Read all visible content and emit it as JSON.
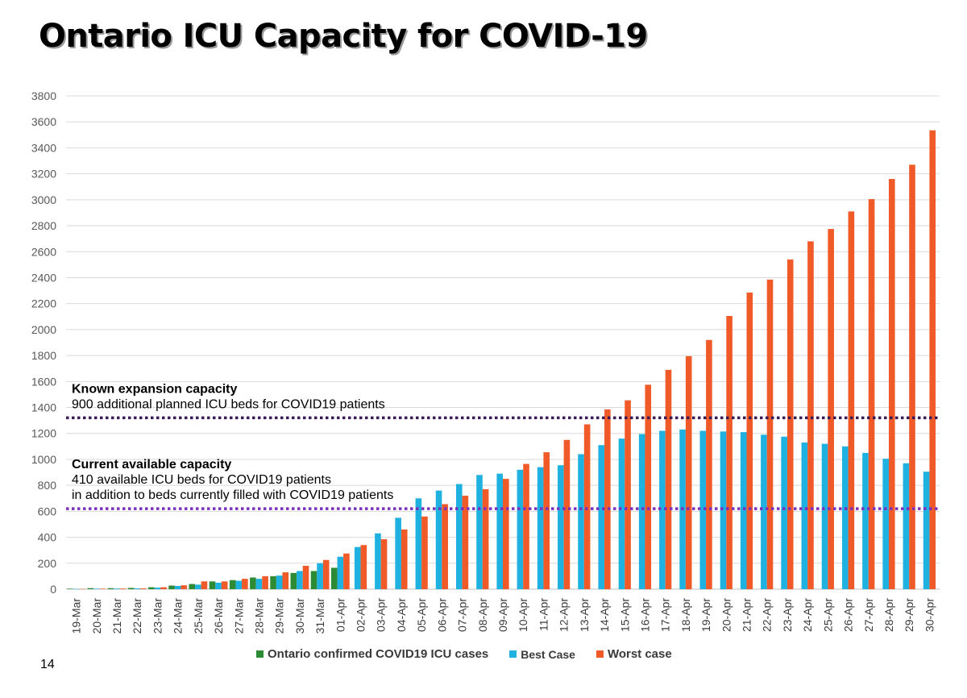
{
  "title": "Ontario ICU Capacity for COVID-19",
  "page_number": "14",
  "chart_data": {
    "type": "bar",
    "ylim": [
      0,
      3800
    ],
    "yticks": [
      0,
      200,
      400,
      600,
      800,
      1000,
      1200,
      1400,
      1600,
      1800,
      2000,
      2200,
      2400,
      2600,
      2800,
      3000,
      3200,
      3400,
      3600,
      3800
    ],
    "grid": true,
    "legend_position": "bottom",
    "categories": [
      "19-Mar",
      "20-Mar",
      "21-Mar",
      "22-Mar",
      "23-Mar",
      "24-Mar",
      "25-Mar",
      "26-Mar",
      "27-Mar",
      "28-Mar",
      "29-Mar",
      "30-Mar",
      "31-Mar",
      "01-Apr",
      "02-Apr",
      "03-Apr",
      "04-Apr",
      "05-Apr",
      "06-Apr",
      "07-Apr",
      "08-Apr",
      "09-Apr",
      "10-Apr",
      "11-Apr",
      "12-Apr",
      "13-Apr",
      "14-Apr",
      "15-Apr",
      "16-Apr",
      "17-Apr",
      "18-Apr",
      "19-Apr",
      "20-Apr",
      "21-Apr",
      "22-Apr",
      "23-Apr",
      "24-Apr",
      "25-Apr",
      "26-Apr",
      "27-Apr",
      "28-Apr",
      "29-Apr",
      "30-Apr"
    ],
    "series": [
      {
        "name": "Ontario confirmed COVID19 ICU cases",
        "color": "#2e8b35",
        "values": [
          4,
          8,
          8,
          10,
          15,
          28,
          40,
          60,
          70,
          90,
          100,
          125,
          140,
          165,
          null,
          null,
          null,
          null,
          null,
          null,
          null,
          null,
          null,
          null,
          null,
          null,
          null,
          null,
          null,
          null,
          null,
          null,
          null,
          null,
          null,
          null,
          null,
          null,
          null,
          null,
          null,
          null,
          null
        ]
      },
      {
        "name": "Best Case",
        "color": "#1fb1df",
        "values": [
          2,
          4,
          5,
          6,
          12,
          25,
          35,
          50,
          65,
          80,
          105,
          140,
          200,
          250,
          325,
          430,
          550,
          700,
          760,
          810,
          880,
          890,
          920,
          940,
          955,
          1040,
          1110,
          1160,
          1195,
          1220,
          1230,
          1220,
          1215,
          1210,
          1190,
          1175,
          1130,
          1120,
          1100,
          1050,
          1005,
          970,
          905
        ]
      },
      {
        "name": "Worst case",
        "color": "#f05a28",
        "values": [
          2,
          4,
          5,
          6,
          15,
          30,
          60,
          60,
          80,
          100,
          130,
          180,
          225,
          275,
          340,
          385,
          460,
          560,
          655,
          720,
          770,
          850,
          965,
          1055,
          1150,
          1270,
          1385,
          1455,
          1575,
          1690,
          1795,
          1920,
          2105,
          2285,
          2385,
          2540,
          2680,
          2775,
          2910,
          3005,
          3160,
          3270,
          3535
        ]
      }
    ],
    "reference_lines": [
      {
        "value": 1320,
        "color": "#3a1a55",
        "label_title": "Known expansion capacity",
        "label_lines": [
          "900 additional planned ICU beds for COVID19 patients"
        ]
      },
      {
        "value": 620,
        "color": "#7b2fbe",
        "label_title": "Current available capacity",
        "label_lines": [
          "410 available ICU beds for COVID19 patients",
          "in addition to beds currently filled with COVID19 patients"
        ]
      }
    ]
  }
}
